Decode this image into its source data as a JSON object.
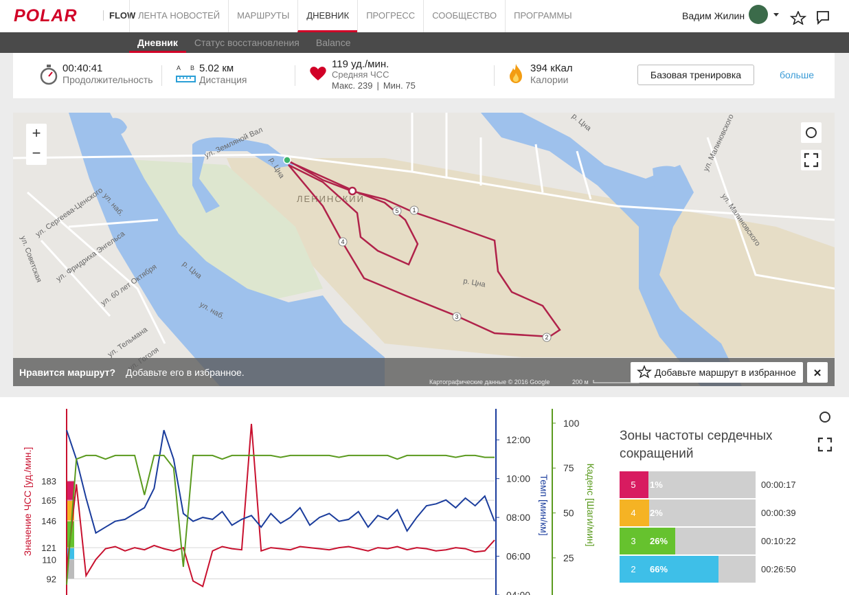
{
  "nav": {
    "logo": "POLAR",
    "product": "FLOW",
    "items": [
      "ЛЕНТА НОВОСТЕЙ",
      "МАРШРУТЫ",
      "ДНЕВНИК",
      "ПРОГРЕСС",
      "СООБЩЕСТВО",
      "ПРОГРАММЫ"
    ],
    "active": 2,
    "user": "Вадим Жилин"
  },
  "subnav": {
    "items": [
      "Дневник",
      "Статус восстановления",
      "Balance"
    ],
    "active": 0
  },
  "summary": {
    "duration": {
      "value": "00:40:41",
      "label": "Продолжительность"
    },
    "distance": {
      "marker_a": "A",
      "marker_b": "B",
      "value": "5.02 км",
      "label": "Дистанция"
    },
    "heart_rate": {
      "value": "119 уд./мин.",
      "label": "Средняя ЧСС",
      "max": "Макс. 239",
      "separator": "|",
      "min": "Мин. 75"
    },
    "calories": {
      "value": "394 кКал",
      "label": "Калории"
    },
    "sport_button": "Базовая тренировка",
    "more_link": "больше"
  },
  "map": {
    "zoom_in": "+",
    "zoom_out": "−",
    "district": "ЛЕНИНСКИЙ",
    "labels": [
      "р. Цна",
      "р. Цна",
      "р. Цна",
      "р. Цна",
      "ул. Земляной Вал",
      "ул. Малиновского",
      "ул. Малиновского",
      "ул. Сергеева-Ценского",
      "ул. Фридриха Энгельса",
      "ул. 60 лет Октября",
      "ул. Тельмана",
      "ул. Гоголя",
      "ул. Советская",
      "ул. наб.",
      "ул. наб."
    ],
    "laps": [
      "1",
      "2",
      "3",
      "4",
      "5"
    ],
    "banner": {
      "question": "Нравится маршрут?",
      "prompt": "Добавьте его в избранное.",
      "button": "Добавьте маршрут в избранное",
      "close": "✕"
    },
    "attribution": "Картографические данные © 2016 Google",
    "scale": "200 м"
  },
  "chart_data": {
    "type": "line",
    "ylabel": "Значение ЧСС [уд./мин.]",
    "ylim": [
      77,
      250
    ],
    "yticks": [
      183,
      165,
      146,
      121,
      110,
      92
    ],
    "y2label": "Темп [мин/км]",
    "y2lim": [
      4,
      13.6
    ],
    "y2ticks": [
      {
        "value": 4,
        "label": "04:00"
      },
      {
        "value": 6,
        "label": "06:00"
      },
      {
        "value": 8,
        "label": "08:00"
      },
      {
        "value": 10,
        "label": "10:00"
      },
      {
        "value": 12,
        "label": "12:00"
      }
    ],
    "y3label": "Каденс [Шаги/мин]",
    "y3lim": [
      4.3,
      108
    ],
    "y3ticks": [
      100,
      75,
      50,
      25
    ],
    "grid": true,
    "series": [
      {
        "color": "#c8102e",
        "axis": "y",
        "values": [
          100,
          180,
          95,
          110,
          120,
          122,
          118,
          121,
          119,
          123,
          120,
          118,
          121,
          90,
          85,
          118,
          122,
          120,
          119,
          236,
          118,
          121,
          120,
          119,
          122,
          121,
          120,
          119,
          121,
          122,
          120,
          118,
          121,
          120,
          122,
          119,
          121,
          120,
          118,
          119,
          121,
          120,
          117,
          118,
          128
        ]
      },
      {
        "color": "#1a3c9c",
        "axis": "y2",
        "values": [
          12.5,
          11,
          9,
          7.2,
          7.5,
          7.8,
          7.9,
          8.2,
          8.5,
          9.5,
          12.5,
          11,
          8.2,
          7.8,
          8.0,
          7.9,
          8.3,
          7.6,
          7.9,
          8.1,
          7.5,
          8.2,
          7.7,
          8.0,
          8.5,
          7.6,
          8.0,
          8.2,
          7.8,
          7.9,
          8.3,
          7.5,
          8.1,
          7.9,
          8.4,
          7.3,
          8.0,
          8.6,
          8.7,
          8.9,
          8.5,
          9.0,
          8.6,
          9.1,
          7.8
        ]
      },
      {
        "color": "#5a9a1e",
        "axis": "y3",
        "values": [
          10,
          80,
          82,
          82,
          80,
          82,
          82,
          82,
          60,
          82,
          82,
          75,
          20,
          82,
          82,
          82,
          80,
          82,
          82,
          82,
          82,
          82,
          81,
          82,
          82,
          82,
          82,
          82,
          81,
          82,
          82,
          82,
          82,
          82,
          80,
          82,
          82,
          82,
          82,
          82,
          81,
          82,
          82,
          81,
          81
        ]
      }
    ]
  },
  "zones": {
    "title": "Зоны частоты сердечных сокращений",
    "rows": [
      {
        "zone": 5,
        "color": "#d81b60",
        "percent": 1,
        "percent_label": "1%",
        "time": "00:00:17"
      },
      {
        "zone": 4,
        "color": "#f5b324",
        "percent": 2,
        "percent_label": "2%",
        "time": "00:00:39"
      },
      {
        "zone": 3,
        "color": "#66c22e",
        "percent": 26,
        "percent_label": "26%",
        "time": "00:10:22"
      },
      {
        "zone": 2,
        "color": "#3ebfe8",
        "percent": 66,
        "percent_label": "66%",
        "time": "00:26:50"
      }
    ]
  }
}
